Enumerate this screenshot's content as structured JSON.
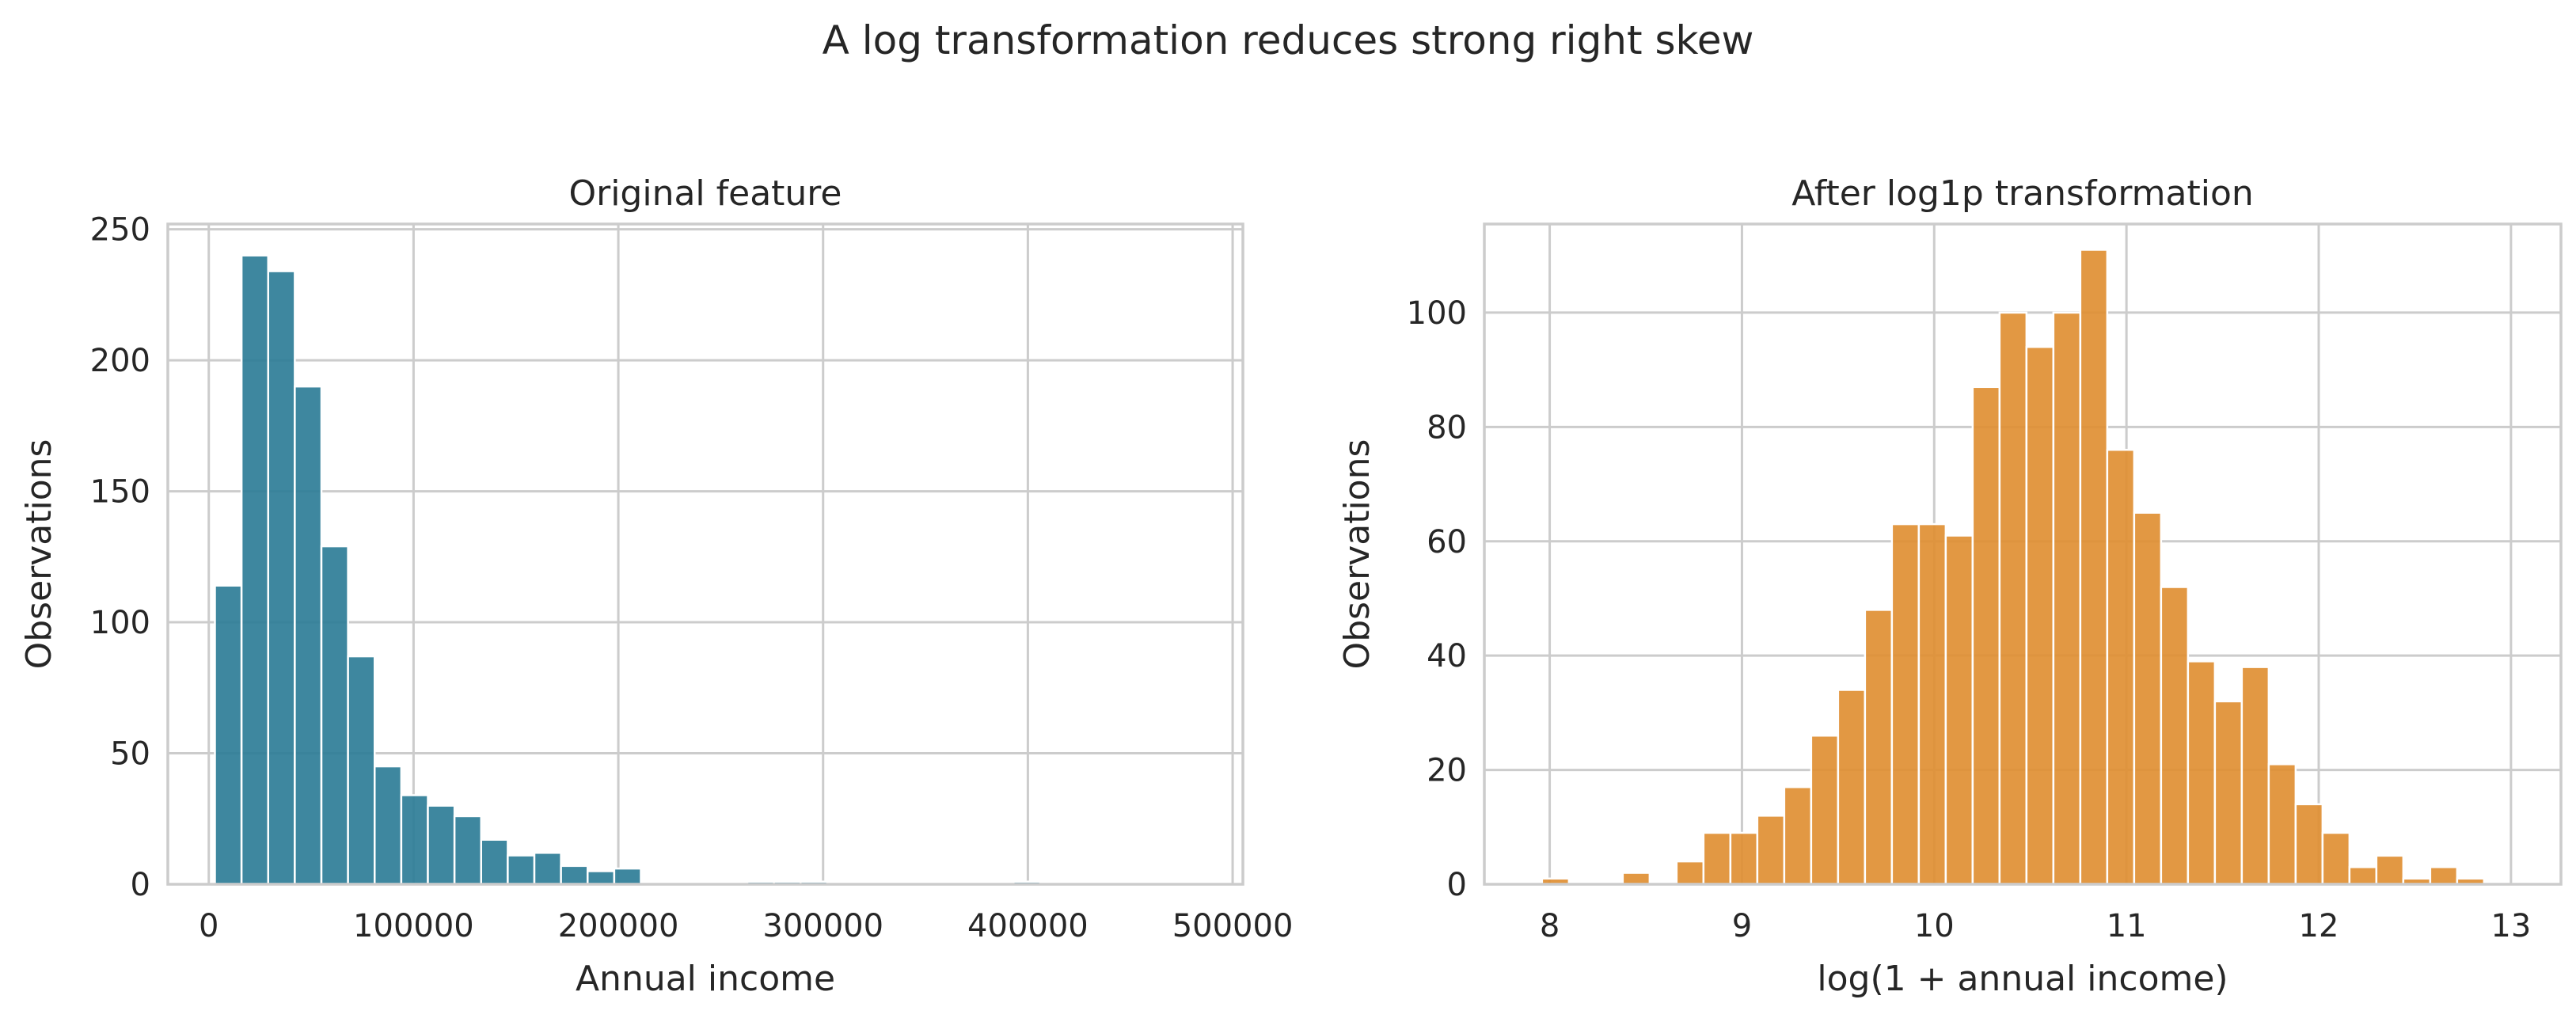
{
  "figure": {
    "suptitle": "A log transformation reduces strong right skew"
  },
  "colors": {
    "left_bar": "#2e7d97",
    "right_bar": "#df8f33",
    "grid": "#cccccc",
    "text": "#262626"
  },
  "chart_data": [
    {
      "type": "bar",
      "title": "Original feature",
      "xlabel": "Annual income",
      "ylabel": "Observations",
      "xlim": [
        -20000,
        505000
      ],
      "ylim": [
        0,
        252
      ],
      "xticks": [
        0,
        100000,
        200000,
        300000,
        400000,
        500000
      ],
      "xtick_labels": [
        "0",
        "100000",
        "200000",
        "300000",
        "400000",
        "500000"
      ],
      "yticks": [
        0,
        50,
        100,
        150,
        200,
        250
      ],
      "ytick_labels": [
        "0",
        "50",
        "100",
        "150",
        "200",
        "250"
      ],
      "grid": true,
      "bin_edges": [
        3000,
        16000,
        29000,
        42000,
        55000,
        68000,
        81000,
        94000,
        107000,
        120000,
        133000,
        146000,
        159000,
        172000,
        185000,
        198000,
        211000,
        224000,
        237000,
        250000,
        263000,
        276000,
        289000,
        302000,
        315000,
        328000,
        341000,
        354000,
        367000,
        380000,
        393000,
        406000,
        419000,
        432000,
        445000,
        458000,
        471000,
        484000
      ],
      "values": [
        114,
        240,
        234,
        190,
        129,
        87,
        45,
        34,
        30,
        26,
        17,
        11,
        12,
        7,
        5,
        6,
        0,
        0,
        0,
        0,
        1,
        1,
        1,
        0,
        0,
        0,
        0,
        0,
        0,
        0,
        1,
        0,
        0,
        0,
        0,
        0,
        0
      ]
    },
    {
      "type": "bar",
      "title": "After log1p transformation",
      "xlabel": "log(1 + annual income)",
      "ylabel": "Observations",
      "xlim": [
        7.66,
        13.26
      ],
      "ylim": [
        0,
        115.5
      ],
      "xticks": [
        8,
        9,
        10,
        11,
        12,
        13
      ],
      "xtick_labels": [
        "8",
        "9",
        "10",
        "11",
        "12",
        "13"
      ],
      "yticks": [
        0,
        20,
        40,
        60,
        80,
        100
      ],
      "ytick_labels": [
        "0",
        "20",
        "40",
        "60",
        "80",
        "100"
      ],
      "grid": true,
      "bin_edges": [
        7.96,
        8.1,
        8.24,
        8.38,
        8.52,
        8.66,
        8.8,
        8.94,
        9.08,
        9.22,
        9.36,
        9.5,
        9.64,
        9.78,
        9.92,
        10.06,
        10.2,
        10.34,
        10.48,
        10.62,
        10.76,
        10.9,
        11.04,
        11.18,
        11.32,
        11.46,
        11.6,
        11.74,
        11.88,
        12.02,
        12.16,
        12.3,
        12.44,
        12.58,
        12.72,
        12.86,
        13.0,
        13.14
      ],
      "values": [
        1,
        0,
        0,
        2,
        0,
        4,
        9,
        9,
        12,
        17,
        26,
        34,
        48,
        63,
        63,
        61,
        87,
        100,
        94,
        100,
        111,
        76,
        65,
        52,
        39,
        32,
        38,
        21,
        14,
        9,
        3,
        5,
        1,
        3,
        1,
        0,
        0
      ]
    }
  ]
}
